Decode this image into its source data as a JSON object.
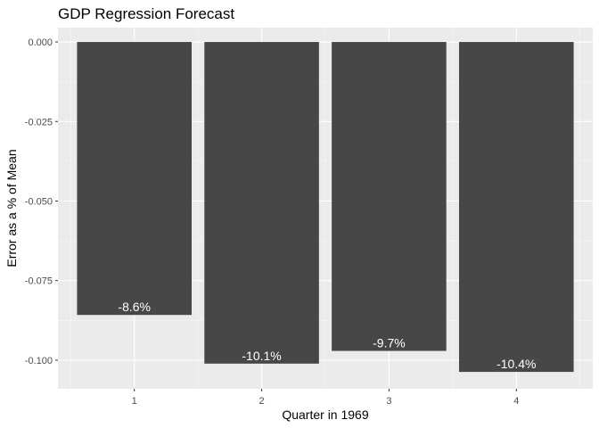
{
  "chart_data": {
    "type": "bar",
    "title": "GDP Regression Forecast",
    "xlabel": "Quarter in 1969",
    "ylabel": "Error as a % of Mean",
    "categories": [
      "1",
      "2",
      "3",
      "4"
    ],
    "values": [
      -0.0858,
      -0.1011,
      -0.0971,
      -0.1037
    ],
    "data_labels": [
      "-8.6%",
      "-10.1%",
      "-9.7%",
      "-10.4%"
    ],
    "y_ticks": [
      0.0,
      -0.025,
      -0.05,
      -0.075,
      -0.1
    ],
    "y_tick_labels": [
      "0.000",
      "-0.025",
      "-0.050",
      "-0.075",
      "-0.100"
    ],
    "ylim": [
      -0.109,
      0.0045
    ],
    "grid": true,
    "legend": "none",
    "colors": {
      "panel": "#ebebeb",
      "grid_major": "#ffffff",
      "bar": "#474747",
      "label": "#ffffff"
    }
  }
}
